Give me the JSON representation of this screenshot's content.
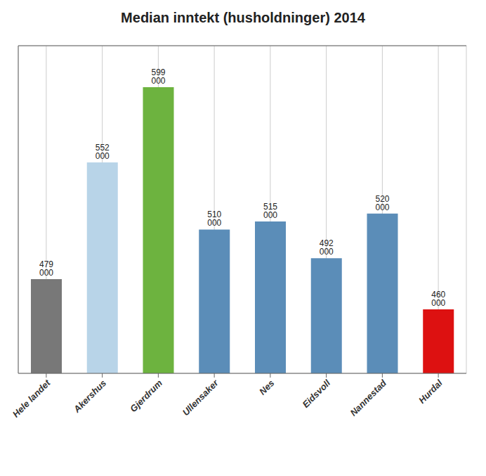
{
  "chart_data": {
    "type": "bar",
    "title": "Median inntekt (husholdninger) 2014",
    "categories": [
      "Hele landet",
      "Akershus",
      "Gjerdrum",
      "Ullensaker",
      "Nes",
      "Eidsvoll",
      "Nannestad",
      "Hurdal"
    ],
    "values": [
      479000,
      552000,
      599000,
      510000,
      515000,
      492000,
      520000,
      460000
    ],
    "value_labels": [
      "479 000",
      "552 000",
      "599 000",
      "510 000",
      "515 000",
      "492 000",
      "520 000",
      "460 000"
    ],
    "colors": [
      "#787878",
      "#b8d4e8",
      "#6db33f",
      "#5b8db8",
      "#5b8db8",
      "#5b8db8",
      "#5b8db8",
      "#dd1111"
    ],
    "ylim": [
      420000,
      625000
    ],
    "yticks": [
      420000,
      440000,
      460000,
      480000,
      500000,
      520000,
      540000,
      560000,
      580000,
      600000,
      620000
    ],
    "grid": true,
    "data_labels": true,
    "tick_labels": "x"
  }
}
